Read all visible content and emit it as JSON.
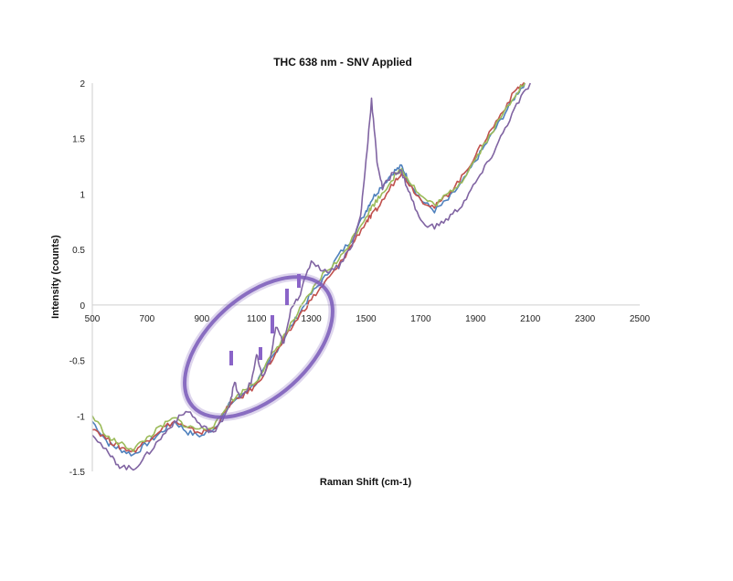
{
  "chart_data": {
    "type": "line",
    "title": "THC 638 nm - SNV Applied",
    "xlabel": "Raman Shift (cm-1)",
    "ylabel": "Intensity (counts)",
    "xlim": [
      500,
      2500
    ],
    "ylim": [
      -1.5,
      2
    ],
    "x_ticks": [
      "500",
      "700",
      "900",
      "1100",
      "1300",
      "1500",
      "1700",
      "1900",
      "2100",
      "2300",
      "2500"
    ],
    "y_ticks": [
      "2",
      "1.5",
      "1",
      "0.5",
      "0",
      "-0.5",
      "-1",
      "-1.5"
    ],
    "grid": false,
    "legend": "none",
    "annotation": "ellipse highlighting peaks around 1000-1150 cm-1",
    "series": [
      {
        "color": "#4f81bd",
        "x": [
          500,
          560,
          600,
          650,
          700,
          750,
          800,
          850,
          900,
          950,
          1000,
          1050,
          1100,
          1150,
          1200,
          1250,
          1300,
          1350,
          1400,
          1450,
          1500,
          1520,
          1550,
          1600,
          1630,
          1650,
          1700,
          1750,
          1800,
          1850,
          1900,
          1950,
          2000,
          2050,
          2080
        ],
        "y": [
          -1.05,
          -1.25,
          -1.3,
          -1.35,
          -1.25,
          -1.15,
          -1.05,
          -1.15,
          -1.18,
          -1.1,
          -0.9,
          -0.8,
          -0.7,
          -0.5,
          -0.3,
          -0.1,
          0.1,
          0.25,
          0.45,
          0.6,
          0.85,
          0.95,
          1.05,
          1.2,
          1.25,
          1.15,
          0.95,
          0.85,
          0.95,
          1.1,
          1.3,
          1.5,
          1.7,
          1.9,
          2.0
        ]
      },
      {
        "color": "#c0504d",
        "x": [
          500,
          560,
          600,
          650,
          700,
          750,
          800,
          850,
          900,
          950,
          1000,
          1050,
          1100,
          1150,
          1200,
          1250,
          1300,
          1350,
          1400,
          1450,
          1500,
          1520,
          1550,
          1600,
          1630,
          1650,
          1700,
          1750,
          1800,
          1850,
          1900,
          1950,
          2000,
          2050,
          2080
        ],
        "y": [
          -1.1,
          -1.22,
          -1.28,
          -1.32,
          -1.22,
          -1.12,
          -1.05,
          -1.12,
          -1.15,
          -1.1,
          -0.9,
          -0.82,
          -0.72,
          -0.52,
          -0.32,
          -0.12,
          0.05,
          0.2,
          0.35,
          0.55,
          0.75,
          0.8,
          0.9,
          1.1,
          1.2,
          1.12,
          0.95,
          0.88,
          1.0,
          1.15,
          1.35,
          1.55,
          1.75,
          1.95,
          2.0
        ]
      },
      {
        "color": "#9bbb59",
        "x": [
          500,
          560,
          600,
          650,
          700,
          750,
          800,
          850,
          900,
          950,
          1000,
          1050,
          1100,
          1150,
          1200,
          1250,
          1300,
          1350,
          1400,
          1450,
          1500,
          1520,
          1550,
          1600,
          1630,
          1650,
          1700,
          1750,
          1800,
          1850,
          1900,
          1950,
          2000,
          2050,
          2080
        ],
        "y": [
          -1.0,
          -1.2,
          -1.25,
          -1.3,
          -1.2,
          -1.1,
          -1.02,
          -1.1,
          -1.12,
          -1.08,
          -0.88,
          -0.78,
          -0.68,
          -0.48,
          -0.28,
          -0.08,
          0.12,
          0.3,
          0.4,
          0.6,
          0.8,
          0.88,
          0.98,
          1.15,
          1.22,
          1.15,
          0.98,
          0.9,
          1.0,
          1.12,
          1.32,
          1.52,
          1.72,
          1.92,
          2.0
        ]
      },
      {
        "color": "#8064a2",
        "x": [
          500,
          560,
          600,
          650,
          700,
          750,
          800,
          850,
          900,
          950,
          1000,
          1020,
          1040,
          1080,
          1100,
          1120,
          1150,
          1170,
          1200,
          1230,
          1260,
          1300,
          1350,
          1400,
          1450,
          1480,
          1500,
          1520,
          1540,
          1560,
          1600,
          1630,
          1660,
          1700,
          1750,
          1800,
          1850,
          1900,
          1950,
          2000,
          2050,
          2100
        ],
        "y": [
          -1.15,
          -1.35,
          -1.45,
          -1.48,
          -1.35,
          -1.2,
          -1.05,
          -0.95,
          -1.1,
          -1.15,
          -0.9,
          -0.7,
          -0.85,
          -0.7,
          -0.45,
          -0.65,
          -0.5,
          -0.2,
          -0.35,
          0.0,
          0.1,
          0.4,
          0.3,
          0.35,
          0.55,
          0.8,
          1.3,
          1.85,
          1.3,
          1.05,
          1.2,
          1.2,
          1.0,
          0.75,
          0.7,
          0.78,
          0.9,
          1.1,
          1.3,
          1.55,
          1.8,
          2.0
        ]
      }
    ]
  }
}
